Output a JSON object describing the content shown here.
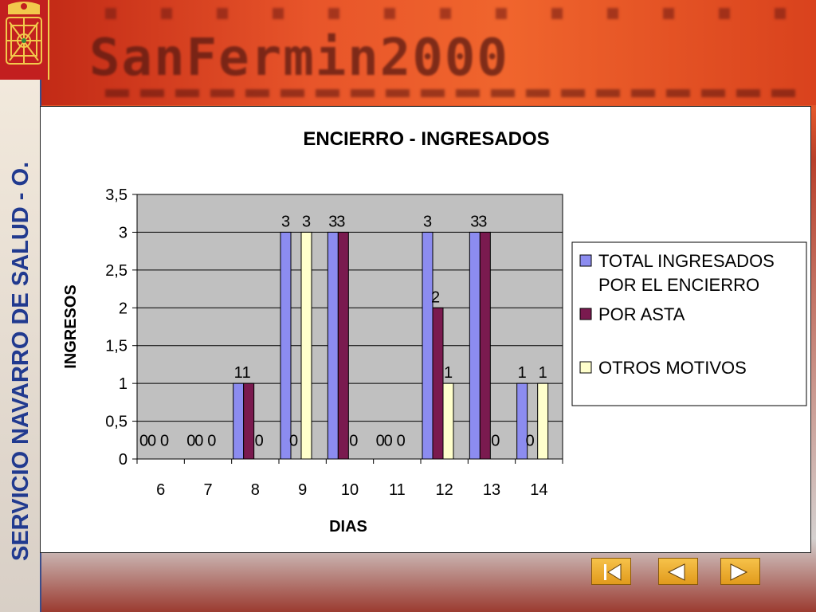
{
  "banner": {
    "title": "SanFermin2000"
  },
  "sidebar": {
    "text": "SERVICIO NAVARRO DE SALUD - O."
  },
  "colors": {
    "total": "#8c8cf0",
    "asta": "#7a1a4f",
    "otros": "#ffffcc",
    "plot_bg": "#c0c0c0",
    "sidebar_text": "#213a8f"
  },
  "chart_data": {
    "type": "bar",
    "title": "ENCIERRO - INGRESADOS",
    "xlabel": "DIAS",
    "ylabel": "INGRESOS",
    "categories": [
      "6",
      "7",
      "8",
      "9",
      "10",
      "11",
      "12",
      "13",
      "14"
    ],
    "y_ticks": [
      "0",
      "0,5",
      "1",
      "1,5",
      "2",
      "2,5",
      "3",
      "3,5"
    ],
    "ylim": [
      0,
      3.5
    ],
    "grid": true,
    "legend": "right",
    "series": [
      {
        "name": "TOTAL INGRESADOS POR EL ENCIERRO",
        "values": [
          0,
          0,
          1,
          3,
          3,
          0,
          3,
          3,
          1
        ]
      },
      {
        "name": "POR ASTA",
        "values": [
          0,
          0,
          1,
          0,
          3,
          0,
          2,
          3,
          0
        ]
      },
      {
        "name": "OTROS MOTIVOS",
        "values": [
          0,
          0,
          0,
          3,
          0,
          0,
          1,
          0,
          1
        ]
      }
    ]
  },
  "nav": {
    "first_icon": "first-slide-icon",
    "prev_icon": "previous-slide-icon",
    "next_icon": "next-slide-icon"
  }
}
